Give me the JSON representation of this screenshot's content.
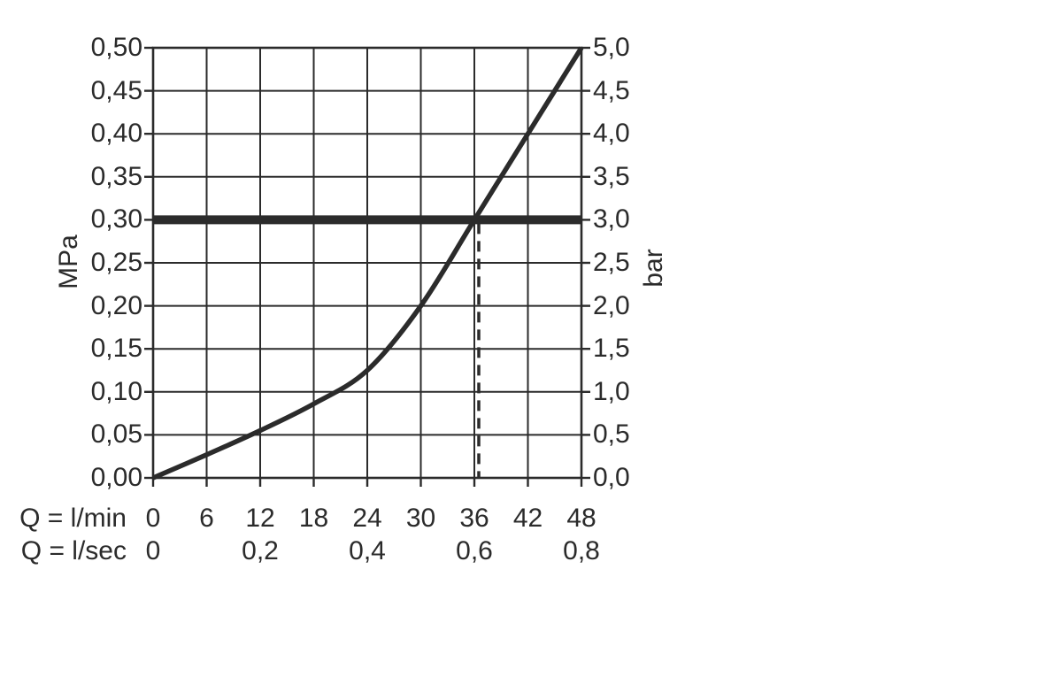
{
  "colors": {
    "ink": "#2b2b2b",
    "background": "#ffffff"
  },
  "chart_data": {
    "type": "line",
    "title": "",
    "description": "Pressure vs. flow-rate performance curve with 0,30 MPa (3,0 bar) reference line and dashed indicator at 36 l/min",
    "grid": true,
    "legend": "none",
    "x_axis": {
      "row1_label": "Q = l/min",
      "row2_label": "Q = l/sec",
      "range_lmin": [
        0,
        48
      ],
      "lmin_ticks": [
        {
          "v": 0,
          "label": "0"
        },
        {
          "v": 6,
          "label": "6"
        },
        {
          "v": 12,
          "label": "12"
        },
        {
          "v": 18,
          "label": "18"
        },
        {
          "v": 24,
          "label": "24"
        },
        {
          "v": 30,
          "label": "30"
        },
        {
          "v": 36,
          "label": "36"
        },
        {
          "v": 42,
          "label": "42"
        },
        {
          "v": 48,
          "label": "48"
        }
      ],
      "lsec_ticks": [
        {
          "v": 0,
          "label": "0"
        },
        {
          "v": 12,
          "label": "0,2"
        },
        {
          "v": 24,
          "label": "0,4"
        },
        {
          "v": 36,
          "label": "0,6"
        },
        {
          "v": 48,
          "label": "0,8"
        }
      ]
    },
    "y_left": {
      "label": "MPa",
      "range_mpa": [
        0,
        0.5
      ],
      "ticks": [
        {
          "v": 0.5,
          "label": "0,50"
        },
        {
          "v": 0.45,
          "label": "0,45"
        },
        {
          "v": 0.4,
          "label": "0,40"
        },
        {
          "v": 0.35,
          "label": "0,35"
        },
        {
          "v": 0.3,
          "label": "0,30"
        },
        {
          "v": 0.25,
          "label": "0,25"
        },
        {
          "v": 0.2,
          "label": "0,20"
        },
        {
          "v": 0.15,
          "label": "0,15"
        },
        {
          "v": 0.1,
          "label": "0,10"
        },
        {
          "v": 0.05,
          "label": "0,05"
        },
        {
          "v": 0.0,
          "label": "0,00"
        }
      ]
    },
    "y_right": {
      "label": "bar",
      "range_bar": [
        0,
        5
      ],
      "ticks": [
        {
          "v": 5.0,
          "label": "5,0"
        },
        {
          "v": 4.5,
          "label": "4,5"
        },
        {
          "v": 4.0,
          "label": "4,0"
        },
        {
          "v": 3.5,
          "label": "3,5"
        },
        {
          "v": 3.0,
          "label": "3,0"
        },
        {
          "v": 2.5,
          "label": "2,5"
        },
        {
          "v": 2.0,
          "label": "2,0"
        },
        {
          "v": 1.5,
          "label": "1,5"
        },
        {
          "v": 1.0,
          "label": "1,0"
        },
        {
          "v": 0.5,
          "label": "0,5"
        },
        {
          "v": 0.0,
          "label": "0,0"
        }
      ]
    },
    "series": [
      {
        "name": "pressure-flow-curve",
        "points_lmin_mpa": [
          [
            0,
            0.0
          ],
          [
            6,
            0.027
          ],
          [
            12,
            0.055
          ],
          [
            18,
            0.086
          ],
          [
            24,
            0.125
          ],
          [
            30,
            0.2
          ],
          [
            36,
            0.3
          ],
          [
            42,
            0.4
          ],
          [
            48,
            0.5
          ]
        ]
      }
    ],
    "reference_line": {
      "mpa": 0.3,
      "bar": 3.0
    },
    "indicator_line": {
      "at_lmin": 36,
      "from_mpa": 0.3,
      "to_mpa": 0.0,
      "style": "dashed"
    }
  }
}
